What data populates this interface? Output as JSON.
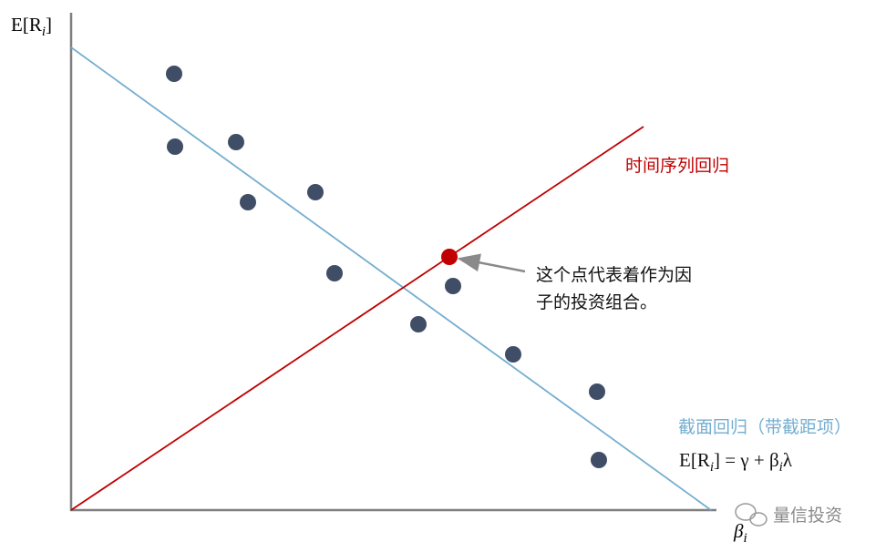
{
  "y_axis_label": {
    "head": "E[R",
    "sub": "i",
    "tail": "]"
  },
  "x_axis_label": {
    "head": "β",
    "sub": "i"
  },
  "time_series_label": "时间序列回归",
  "annotation": {
    "lines": [
      "这个点代表着作为因",
      "子的投资组合。"
    ]
  },
  "cross_section_label": "截面回归（带截距项）",
  "formula": {
    "parts": [
      "E[R",
      "i",
      "] = γ + β",
      "i",
      "λ"
    ]
  },
  "watermark": "量信投资"
}
